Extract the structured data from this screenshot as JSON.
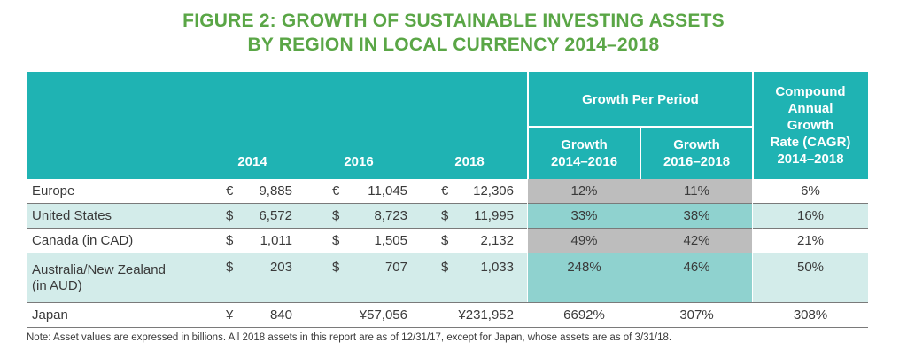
{
  "title": {
    "line1": "FIGURE 2: GROWTH OF SUSTAINABLE INVESTING ASSETS",
    "line2": "BY REGION IN LOCAL CURRENCY 2014–2018"
  },
  "header": {
    "y2014": "2014",
    "y2016": "2016",
    "y2018": "2018",
    "growth_per_period": "Growth Per Period",
    "growth_1416_l1": "Growth",
    "growth_1416_l2": "2014–2016",
    "growth_1618_l1": "Growth",
    "growth_1618_l2": "2016–2018",
    "cagr_l1": "Compound",
    "cagr_l2": "Annual",
    "cagr_l3": "Growth",
    "cagr_l4": "Rate (CAGR)",
    "cagr_l5": "2014–2018"
  },
  "rows": [
    {
      "region": "Europe",
      "region2": "",
      "c2014": "€",
      "v2014": "9,885",
      "c2016": "€",
      "v2016": "11,045",
      "c2018": "€",
      "v2018": "12,306",
      "g1": "12%",
      "g2": "11%",
      "cagr": "6%"
    },
    {
      "region": "United States",
      "region2": "",
      "c2014": "$",
      "v2014": "6,572",
      "c2016": "$",
      "v2016": "8,723",
      "c2018": "$",
      "v2018": "11,995",
      "g1": "33%",
      "g2": "38%",
      "cagr": "16%"
    },
    {
      "region": "Canada (in CAD)",
      "region2": "",
      "c2014": "$",
      "v2014": "1,011",
      "c2016": "$",
      "v2016": "1,505",
      "c2018": "$",
      "v2018": "2,132",
      "g1": "49%",
      "g2": "42%",
      "cagr": "21%"
    },
    {
      "region": "Australia/New Zealand",
      "region2": "(in AUD)",
      "c2014": "$",
      "v2014": "203",
      "c2016": "$",
      "v2016": "707",
      "c2018": "$",
      "v2018": "1,033",
      "g1": "248%",
      "g2": "46%",
      "cagr": "50%"
    },
    {
      "region": "Japan",
      "region2": "",
      "c2014": "¥",
      "v2014": "840",
      "c2016": "¥",
      "v2016": "57,056",
      "c2018": "¥",
      "v2018": "231,952",
      "g1": "6692%",
      "g2": "307%",
      "cagr": "308%"
    }
  ],
  "note": "Note: Asset values are expressed in billions. All 2018 assets in this report are as of 12/31/17, except for Japan, whose assets are as of 3/31/18.",
  "colors": {
    "header": "#1fb3b3",
    "title": "#5aa646",
    "band": "#d3ecea",
    "gray": "#bdbdbd",
    "teal_mid": "#8fd2cf"
  }
}
